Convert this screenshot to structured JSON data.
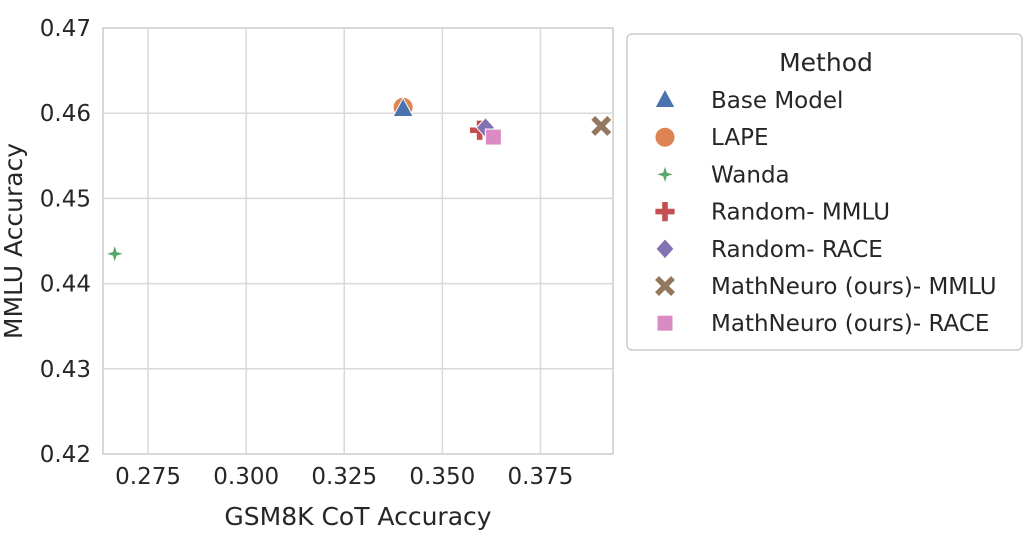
{
  "chart_data": {
    "type": "scatter",
    "title": "",
    "xlabel": "GSM8K CoT Accuracy",
    "ylabel": "MMLU Accuracy",
    "xlim": [
      0.2635,
      0.3935
    ],
    "ylim": [
      0.42,
      0.47
    ],
    "xticks": [
      "0.275",
      "0.300",
      "0.325",
      "0.350",
      "0.375"
    ],
    "xtick_values": [
      0.275,
      0.3,
      0.325,
      0.35,
      0.375
    ],
    "yticks": [
      "0.42",
      "0.43",
      "0.44",
      "0.45",
      "0.46",
      "0.47"
    ],
    "ytick_values": [
      0.42,
      0.43,
      0.44,
      0.45,
      0.46,
      0.47
    ],
    "grid": true,
    "legend_title": "Method",
    "legend_placement": "outside-right",
    "series": [
      {
        "name": "Base Model",
        "marker": "triangle",
        "color": "#4c72b0",
        "x": 0.34,
        "y": 0.4605
      },
      {
        "name": "LAPE",
        "marker": "circle",
        "color": "#dd8452",
        "x": 0.34,
        "y": 0.4607
      },
      {
        "name": "Wanda",
        "marker": "star4",
        "color": "#55a868",
        "x": 0.2665,
        "y": 0.4435
      },
      {
        "name": "Random- MMLU",
        "marker": "plus",
        "color": "#c44e52",
        "x": 0.3595,
        "y": 0.458
      },
      {
        "name": "Random- RACE",
        "marker": "diamond",
        "color": "#8172b3",
        "x": 0.361,
        "y": 0.4583
      },
      {
        "name": "MathNeuro (ours)- MMLU",
        "marker": "x",
        "color": "#937860",
        "x": 0.3905,
        "y": 0.4585
      },
      {
        "name": "MathNeuro (ours)- RACE",
        "marker": "square",
        "color": "#da8bc3",
        "x": 0.363,
        "y": 0.4572
      }
    ]
  }
}
